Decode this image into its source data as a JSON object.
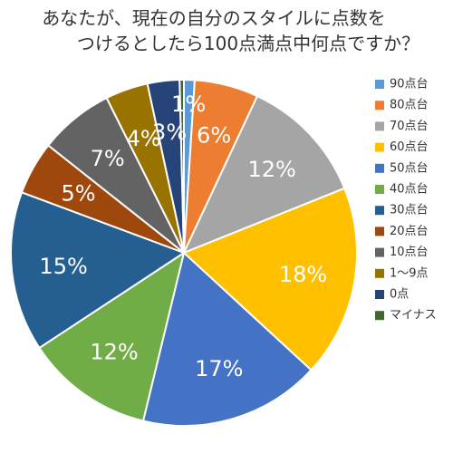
{
  "title_lines": [
    "あなたが、現在の自分のスタイルに点数を",
    "つけるとしたら100点満点中何点ですか？"
  ],
  "chart_data": {
    "type": "pie",
    "title": "あなたが、現在の自分のスタイルに点数をつけるとしたら100点満点中何点ですか？",
    "legend_position": "right",
    "slices": [
      {
        "name": "90点台",
        "value": 1,
        "label": "1%",
        "color": "#5b9bd5"
      },
      {
        "name": "80点台",
        "value": 6,
        "label": "6%",
        "color": "#ed7d31"
      },
      {
        "name": "70点台",
        "value": 12,
        "label": "12%",
        "color": "#a5a5a5"
      },
      {
        "name": "60点台",
        "value": 18,
        "label": "18%",
        "color": "#ffc000"
      },
      {
        "name": "50点台",
        "value": 17,
        "label": "17%",
        "color": "#4472c4"
      },
      {
        "name": "40点台",
        "value": 12,
        "label": "12%",
        "color": "#70ad47"
      },
      {
        "name": "30点台",
        "value": 15,
        "label": "15%",
        "color": "#255e91"
      },
      {
        "name": "20点台",
        "value": 5,
        "label": "5%",
        "color": "#9e480e"
      },
      {
        "name": "10点台",
        "value": 7,
        "label": "7%",
        "color": "#636363"
      },
      {
        "name": "1～9点",
        "value": 4,
        "label": "4%",
        "color": "#997300"
      },
      {
        "name": "0点",
        "value": 3,
        "label": "3%",
        "color": "#264478"
      },
      {
        "name": "マイナス",
        "value": 0.4,
        "label": "",
        "color": "#43682b"
      }
    ]
  }
}
